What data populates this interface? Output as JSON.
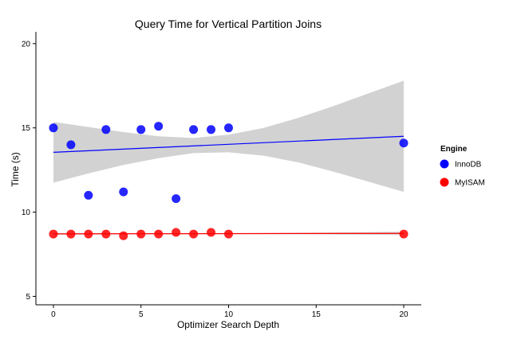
{
  "chart_data": {
    "type": "scatter",
    "title": "Query Time for Vertical Partition Joins",
    "xlabel": "Optimizer Search Depth",
    "ylabel": "Time (s)",
    "xlim": [
      -1,
      21
    ],
    "ylim": [
      4.5,
      20.7
    ],
    "x_ticks": [
      0,
      5,
      10,
      15,
      20
    ],
    "y_ticks": [
      5,
      10,
      15,
      20
    ],
    "grid": false,
    "legend": {
      "title": "Engine",
      "placement": "right"
    },
    "series": [
      {
        "name": "InnoDB",
        "color": "#0000FF",
        "points": [
          {
            "x": 0,
            "y": 15.0
          },
          {
            "x": 1,
            "y": 14.0
          },
          {
            "x": 2,
            "y": 11.0
          },
          {
            "x": 3,
            "y": 14.9
          },
          {
            "x": 4,
            "y": 11.2
          },
          {
            "x": 5,
            "y": 14.9
          },
          {
            "x": 6,
            "y": 15.1
          },
          {
            "x": 7,
            "y": 10.8
          },
          {
            "x": 8,
            "y": 14.9
          },
          {
            "x": 9,
            "y": 14.9
          },
          {
            "x": 10,
            "y": 15.0
          },
          {
            "x": 20,
            "y": 14.1
          }
        ],
        "trend": {
          "x": [
            0,
            20
          ],
          "y": [
            13.55,
            14.5
          ]
        },
        "confidence_band": {
          "x": [
            0,
            2,
            4,
            6,
            8,
            10,
            12,
            14,
            16,
            18,
            20
          ],
          "lower": [
            11.75,
            12.3,
            12.8,
            13.2,
            13.5,
            13.55,
            13.35,
            12.95,
            12.4,
            11.8,
            11.2
          ],
          "upper": [
            15.35,
            15.05,
            14.75,
            14.5,
            14.4,
            14.6,
            15.0,
            15.6,
            16.3,
            17.05,
            17.8
          ]
        }
      },
      {
        "name": "MyISAM",
        "color": "#FF0000",
        "points": [
          {
            "x": 0,
            "y": 8.7
          },
          {
            "x": 1,
            "y": 8.7
          },
          {
            "x": 2,
            "y": 8.7
          },
          {
            "x": 3,
            "y": 8.7
          },
          {
            "x": 4,
            "y": 8.6
          },
          {
            "x": 5,
            "y": 8.7
          },
          {
            "x": 6,
            "y": 8.7
          },
          {
            "x": 7,
            "y": 8.8
          },
          {
            "x": 8,
            "y": 8.7
          },
          {
            "x": 9,
            "y": 8.8
          },
          {
            "x": 10,
            "y": 8.7
          },
          {
            "x": 20,
            "y": 8.7
          }
        ],
        "trend": {
          "x": [
            0,
            20
          ],
          "y": [
            8.71,
            8.74
          ]
        },
        "confidence_band": {
          "x": [
            0,
            5,
            10,
            15,
            20
          ],
          "lower": [
            8.66,
            8.69,
            8.7,
            8.68,
            8.64
          ],
          "upper": [
            8.76,
            8.74,
            8.74,
            8.78,
            8.84
          ]
        }
      }
    ]
  },
  "colors": {
    "band": "#D0D0D0",
    "axis": "#000000"
  }
}
